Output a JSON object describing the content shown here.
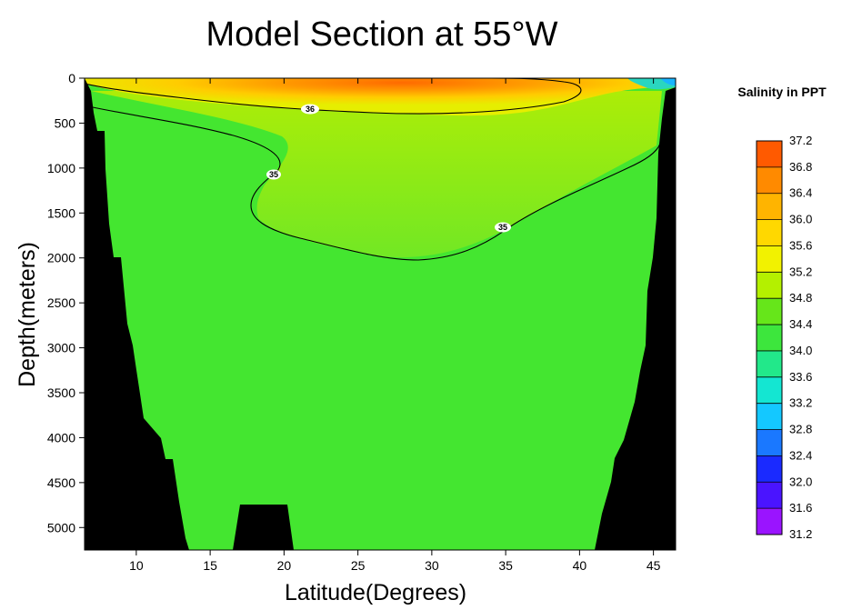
{
  "chart_data": {
    "type": "heatmap",
    "title": "Model Section at 55°W",
    "xlabel": "Latitude(Degrees)",
    "ylabel": "Depth(meters)",
    "xlim": [
      6.5,
      46.5
    ],
    "ylim": [
      5250,
      0
    ],
    "x_ticks": [
      10,
      15,
      20,
      25,
      30,
      35,
      40,
      45
    ],
    "y_ticks": [
      0,
      500,
      1000,
      1500,
      2000,
      2500,
      3000,
      3500,
      4000,
      4500,
      5000
    ],
    "colorbar": {
      "title": "Salinity in PPT",
      "levels": [
        37.2,
        36.8,
        36.4,
        36.0,
        35.6,
        35.2,
        34.8,
        34.4,
        34.0,
        33.6,
        33.2,
        32.8,
        32.4,
        32.0,
        31.6,
        31.2
      ],
      "colors": [
        "#ff2a00",
        "#ff5a00",
        "#ff8a00",
        "#ffb400",
        "#ffd800",
        "#f2f200",
        "#b4f000",
        "#66e61a",
        "#3de63d",
        "#22e88a",
        "#14e6d2",
        "#14c8ff",
        "#1a78ff",
        "#1a2aff",
        "#4a14ff",
        "#9a14ff",
        "#ff1aff"
      ]
    },
    "background_salinity": 34.9,
    "contours": [
      {
        "level": "36",
        "label_at": [
          21.8,
          350
        ]
      },
      {
        "level": "35",
        "label_at": [
          19.2,
          1080
        ]
      },
      {
        "level": "35",
        "label_at": [
          34.9,
          1680
        ]
      }
    ],
    "land_mask_color": "#000000"
  }
}
